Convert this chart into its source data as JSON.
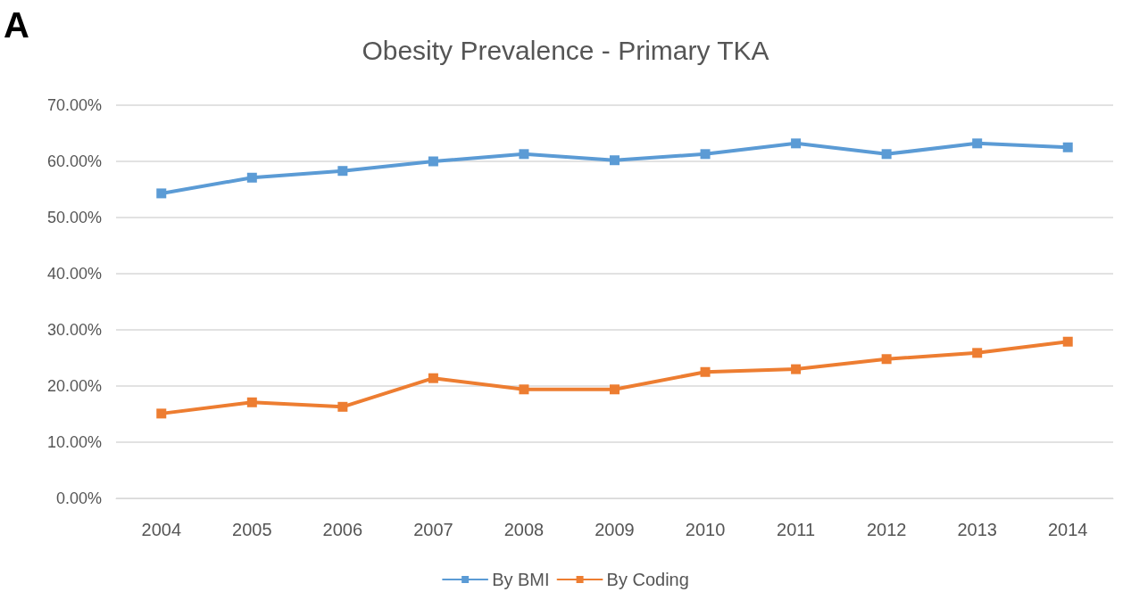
{
  "chart_data": {
    "type": "line",
    "title": "Obesity Prevalence - Primary TKA",
    "annotations": [
      "A"
    ],
    "categories": [
      "2004",
      "2005",
      "2006",
      "2007",
      "2008",
      "2009",
      "2010",
      "2011",
      "2012",
      "2013",
      "2014"
    ],
    "series": [
      {
        "name": "By BMI",
        "color": "#5b9bd5",
        "values": [
          54.3,
          57.1,
          58.3,
          60.0,
          61.3,
          60.2,
          61.3,
          63.2,
          61.3,
          63.2,
          62.5
        ]
      },
      {
        "name": "By Coding",
        "color": "#ed7d31",
        "values": [
          15.1,
          17.1,
          16.3,
          21.4,
          19.4,
          19.4,
          22.5,
          23.0,
          24.8,
          25.9,
          27.9
        ]
      }
    ],
    "ylim": [
      0,
      70
    ],
    "yticks": [
      {
        "value": 0,
        "label": "0.00%"
      },
      {
        "value": 10,
        "label": "10.00%"
      },
      {
        "value": 20,
        "label": "20.00%"
      },
      {
        "value": 30,
        "label": "30.00%"
      },
      {
        "value": 40,
        "label": "40.00%"
      },
      {
        "value": 50,
        "label": "50.00%"
      },
      {
        "value": 60,
        "label": "60.00%"
      },
      {
        "value": 70,
        "label": "70.00%"
      }
    ],
    "grid": "y",
    "legend": "bottom",
    "marker": "square",
    "line_style": "solid"
  }
}
